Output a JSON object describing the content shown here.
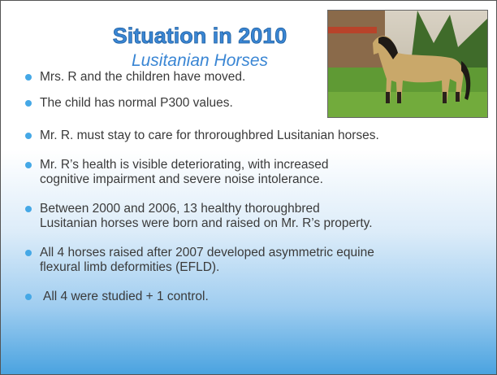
{
  "title": "Situation in 2010",
  "subtitle": "Lusitanian Horses",
  "bullets": [
    [
      "Mrs. R and the children have moved."
    ],
    [
      "The child has normal P300 values."
    ],
    [
      "Mr. R. must stay to care for throroughbred Lusitanian horses."
    ],
    [
      "Mr. R’s health is visible deteriorating, with increased",
      "cognitive impairment and severe noise intolerance."
    ],
    [
      "Between 2000 and 2006, 13 healthy thoroughbred",
      "Lusitanian horses were born and raised on Mr. R’s property."
    ],
    [
      "All 4 horses raised after 2007 developed asymmetric equine",
      "flexural limb deformities (EFLD)."
    ],
    [
      "All 4 were studied + 1 control."
    ]
  ]
}
